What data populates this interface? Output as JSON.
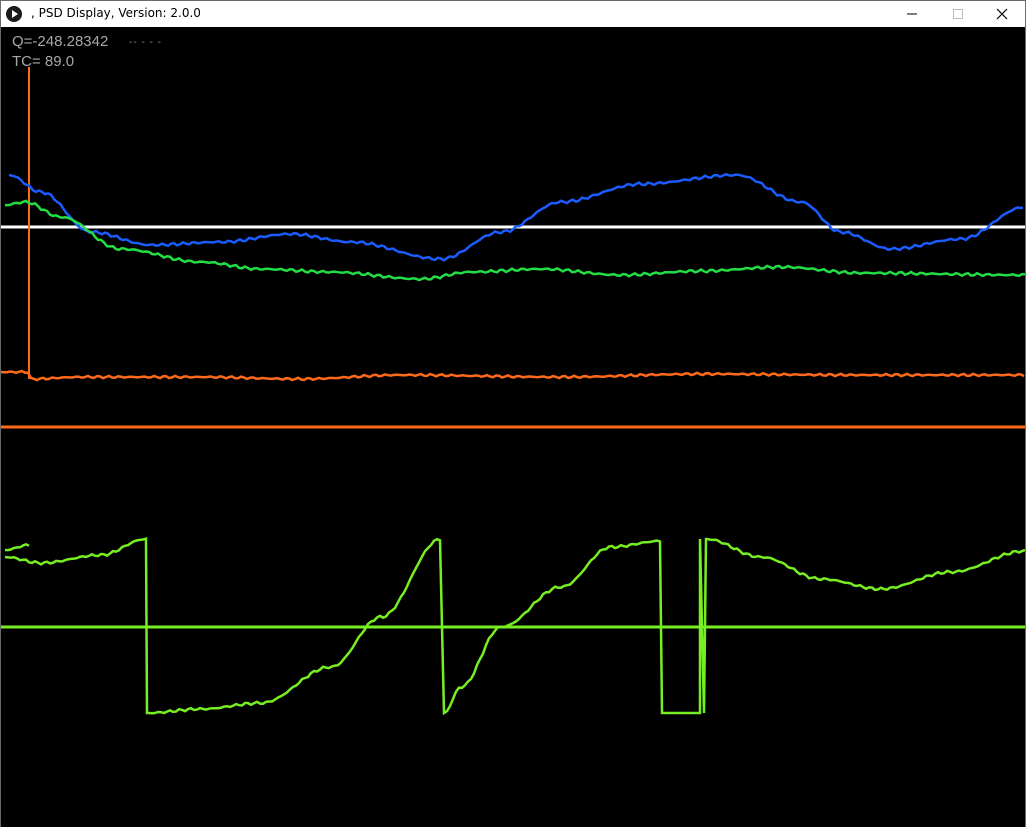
{
  "window": {
    "title": ", PSD Display, Version: 2.0.0",
    "icon": "play-circle-icon",
    "controls": [
      "minimize-icon",
      "maximize-icon",
      "close-icon"
    ]
  },
  "readouts": {
    "q": "Q=-248.28342",
    "tc": "TC= 89.0",
    "extra": "-- - - -"
  },
  "colors": {
    "blue": "#1a5cff",
    "green": "#22dd44",
    "orange": "#ff6a1a",
    "lime": "#77ee22",
    "white": "#ffffff",
    "background": "#000000"
  }
}
